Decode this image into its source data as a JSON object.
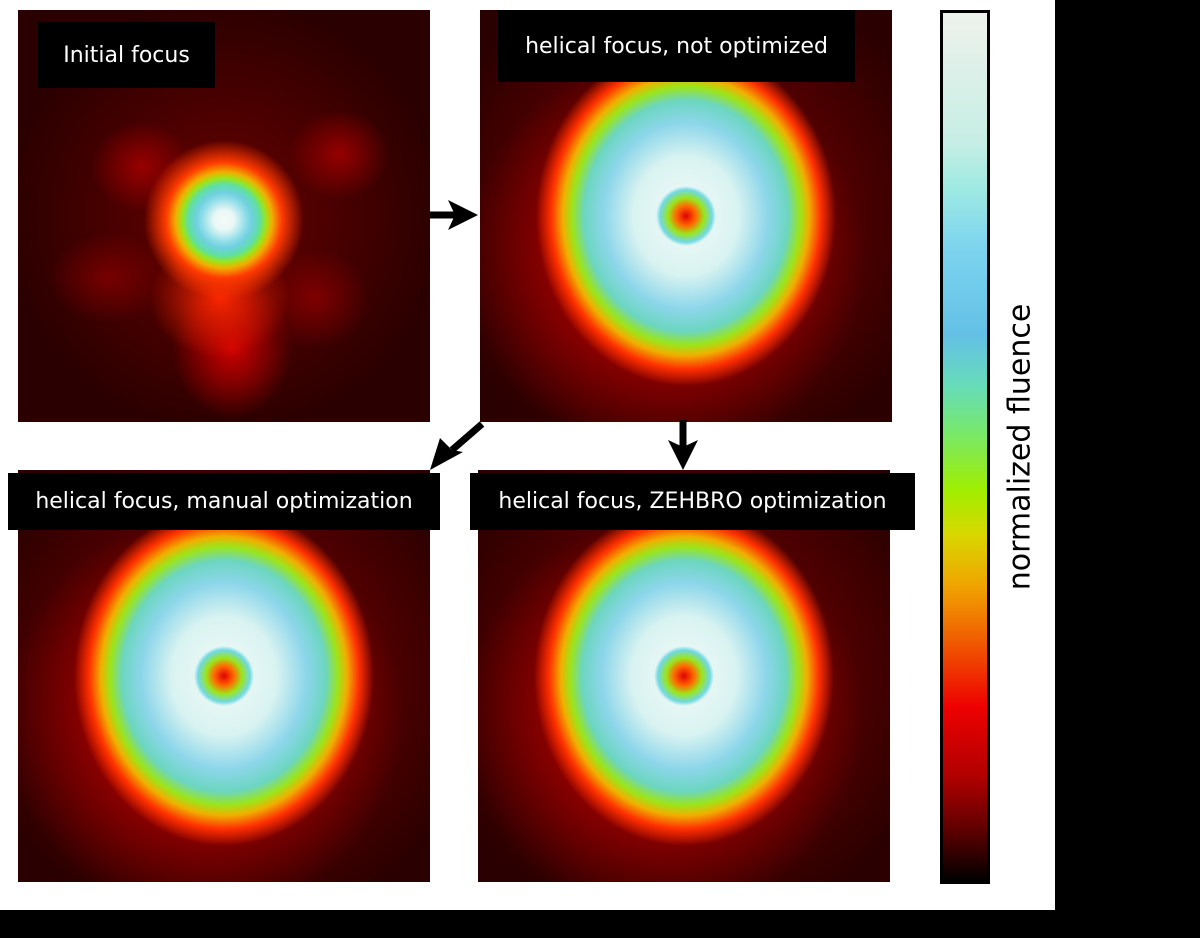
{
  "panels": [
    {
      "title": "Initial focus"
    },
    {
      "title": "helical focus, not optimized"
    },
    {
      "title": "helical focus, manual optimization"
    },
    {
      "title": "helical focus, ZEHBRO optimization"
    }
  ],
  "colorbar": {
    "label": "normalized fluence",
    "colormap": [
      "#000000",
      "#b00000",
      "#ee0000",
      "#f06000",
      "#f0a400",
      "#a0ee00",
      "#66dcb8",
      "#64c0e6",
      "#9feae2",
      "#eef2ec"
    ]
  },
  "arrows": [
    "panel-1-to-panel-2",
    "panel-2-to-panel-3",
    "panel-2-to-panel-4"
  ]
}
